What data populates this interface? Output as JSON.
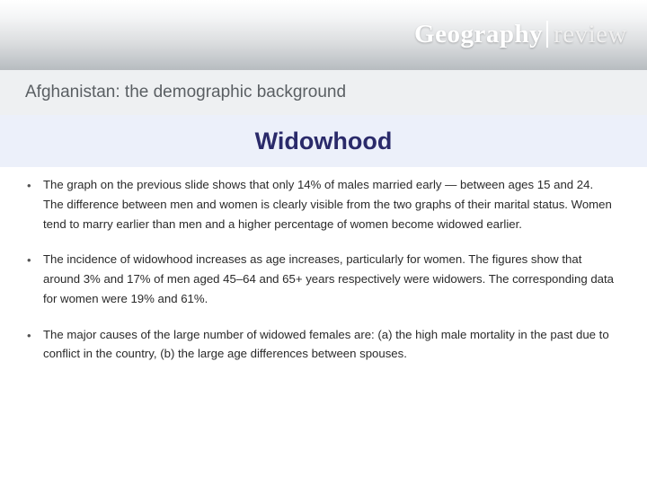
{
  "brand": {
    "word1": "Geography",
    "word2": "review"
  },
  "subtitle": "Afghanistan: the demographic background",
  "title": "Widowhood",
  "bullets": {
    "b0": "The graph on the previous slide shows that only 14% of males married early — between ages 15 and 24. The difference between men and women is clearly visible from the two graphs of their marital status. Women tend to marry earlier than men and a higher percentage of women become widowed earlier.",
    "b1": "The incidence of widowhood increases as age increases, particularly for women. The figures show that around 3% and 17% of men aged 45–64 and 65+ years respectively were widowers. The corresponding data for women were 19% and 61%.",
    "b2": "The major causes of the large number of widowed females are: (a) the high male mortality in the past due to conflict in the country, (b) the large age differences between spouses."
  },
  "colors": {
    "title_color": "#2a2a6a",
    "title_bg": "#ecf0fa",
    "subtitle_color": "#5a5f63",
    "subtitle_bg": "#eef0f2",
    "body_text": "#2a2a2a"
  },
  "fonts": {
    "body_family": "Verdana",
    "brand_family": "Georgia",
    "title_size_pt": 20,
    "subtitle_size_pt": 14,
    "body_size_pt": 10
  }
}
